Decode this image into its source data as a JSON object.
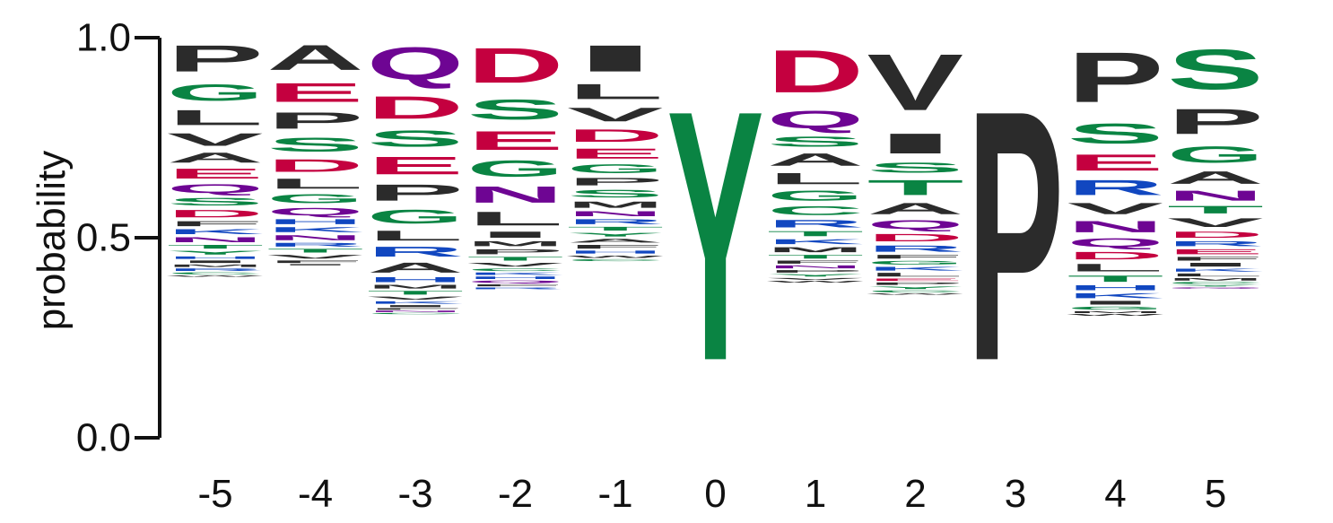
{
  "chart_data": {
    "type": "sequence-logo",
    "ylabel": "probability",
    "ylim": [
      0,
      1
    ],
    "yticks": [
      "0.0",
      "0.5",
      "1.0"
    ],
    "colors": {
      "hydrophobic": "#2b2b2b",
      "polar": "#0a8443",
      "acidic": "#c4003f",
      "basic": "#1147c0",
      "amide": "#6e0593"
    },
    "residue_classes": {
      "A": "hydrophobic",
      "V": "hydrophobic",
      "L": "hydrophobic",
      "I": "hydrophobic",
      "P": "hydrophobic",
      "F": "hydrophobic",
      "M": "hydrophobic",
      "W": "hydrophobic",
      "G": "polar",
      "S": "polar",
      "T": "polar",
      "Y": "polar",
      "C": "polar",
      "D": "acidic",
      "E": "acidic",
      "K": "basic",
      "R": "basic",
      "H": "basic",
      "N": "amide",
      "Q": "amide"
    },
    "positions": [
      {
        "label": "-5",
        "letters": [
          [
            "P",
            0.105
          ],
          [
            "G",
            0.065
          ],
          [
            "L",
            0.06
          ],
          [
            "V",
            0.05
          ],
          [
            "A",
            0.04
          ],
          [
            "E",
            0.04
          ],
          [
            "Q",
            0.035
          ],
          [
            "S",
            0.03
          ],
          [
            "D",
            0.03
          ],
          [
            "F",
            0.02
          ],
          [
            "K",
            0.02
          ],
          [
            "N",
            0.02
          ],
          [
            "T",
            0.015
          ],
          [
            "Y",
            0.015
          ],
          [
            "H",
            0.01
          ],
          [
            "I",
            0.01
          ],
          [
            "M",
            0.01
          ],
          [
            "R",
            0.01
          ],
          [
            "C",
            0.008
          ],
          [
            "W",
            0.005
          ]
        ]
      },
      {
        "label": "-4",
        "letters": [
          [
            "A",
            0.1
          ],
          [
            "E",
            0.075
          ],
          [
            "P",
            0.065
          ],
          [
            "S",
            0.055
          ],
          [
            "D",
            0.05
          ],
          [
            "L",
            0.04
          ],
          [
            "G",
            0.035
          ],
          [
            "Q",
            0.03
          ],
          [
            "H",
            0.02
          ],
          [
            "K",
            0.02
          ],
          [
            "N",
            0.02
          ],
          [
            "R",
            0.015
          ],
          [
            "T",
            0.015
          ],
          [
            "V",
            0.015
          ],
          [
            "F",
            0.01
          ],
          [
            "I",
            0.005
          ]
        ]
      },
      {
        "label": "-3",
        "letters": [
          [
            "Q",
            0.13
          ],
          [
            "D",
            0.09
          ],
          [
            "S",
            0.065
          ],
          [
            "E",
            0.07
          ],
          [
            "P",
            0.065
          ],
          [
            "G",
            0.055
          ],
          [
            "L",
            0.04
          ],
          [
            "R",
            0.04
          ],
          [
            "A",
            0.04
          ],
          [
            "H",
            0.02
          ],
          [
            "M",
            0.015
          ],
          [
            "T",
            0.015
          ],
          [
            "V",
            0.012
          ],
          [
            "K",
            0.01
          ],
          [
            "I",
            0.008
          ],
          [
            "F",
            0.006
          ],
          [
            "N",
            0.006
          ],
          [
            "C",
            0.005
          ]
        ]
      },
      {
        "label": "-2",
        "letters": [
          [
            "D",
            0.14
          ],
          [
            "S",
            0.08
          ],
          [
            "E",
            0.075
          ],
          [
            "G",
            0.065
          ],
          [
            "N",
            0.065
          ],
          [
            "L",
            0.055
          ],
          [
            "I",
            0.025
          ],
          [
            "M",
            0.02
          ],
          [
            "P",
            0.02
          ],
          [
            "T",
            0.015
          ],
          [
            "V",
            0.015
          ],
          [
            "C",
            0.01
          ],
          [
            "K",
            0.01
          ],
          [
            "H",
            0.01
          ],
          [
            "Q",
            0.01
          ],
          [
            "F",
            0.008
          ],
          [
            "R",
            0.007
          ]
        ]
      },
      {
        "label": "-1",
        "letters": [
          [
            "I",
            0.105
          ],
          [
            "L",
            0.06
          ],
          [
            "V",
            0.055
          ],
          [
            "D",
            0.05
          ],
          [
            "E",
            0.04
          ],
          [
            "G",
            0.035
          ],
          [
            "P",
            0.03
          ],
          [
            "S",
            0.03
          ],
          [
            "M",
            0.025
          ],
          [
            "N",
            0.02
          ],
          [
            "R",
            0.02
          ],
          [
            "T",
            0.015
          ],
          [
            "Y",
            0.015
          ],
          [
            "A",
            0.015
          ],
          [
            "F",
            0.015
          ],
          [
            "H",
            0.012
          ],
          [
            "W",
            0.01
          ],
          [
            "C",
            0.008
          ]
        ]
      },
      {
        "label": "0",
        "letters": [
          [
            "Y",
            1.0
          ]
        ]
      },
      {
        "label": "1",
        "letters": [
          [
            "D",
            0.17
          ],
          [
            "Q",
            0.07
          ],
          [
            "S",
            0.04
          ],
          [
            "A",
            0.05
          ],
          [
            "L",
            0.045
          ],
          [
            "G",
            0.04
          ],
          [
            "C",
            0.035
          ],
          [
            "R",
            0.03
          ],
          [
            "T",
            0.02
          ],
          [
            "K",
            0.02
          ],
          [
            "M",
            0.02
          ],
          [
            "T",
            0.015
          ],
          [
            "F",
            0.012
          ],
          [
            "N",
            0.012
          ],
          [
            "P",
            0.01
          ],
          [
            "Y",
            0.01
          ],
          [
            "V",
            0.008
          ],
          [
            "W",
            0.006
          ]
        ]
      },
      {
        "label": "2",
        "letters": [
          [
            "V",
            0.225
          ],
          [
            "I",
            0.08
          ],
          [
            "S",
            0.04
          ],
          [
            "T",
            0.06
          ],
          [
            "A",
            0.045
          ],
          [
            "Q",
            0.035
          ],
          [
            "D",
            0.03
          ],
          [
            "R",
            0.025
          ],
          [
            "F",
            0.015
          ],
          [
            "G",
            0.015
          ],
          [
            "K",
            0.015
          ],
          [
            "L",
            0.015
          ],
          [
            "E",
            0.01
          ],
          [
            "P",
            0.01
          ],
          [
            "Y",
            0.01
          ],
          [
            "C",
            0.008
          ],
          [
            "W",
            0.005
          ]
        ]
      },
      {
        "label": "3",
        "letters": [
          [
            "P",
            1.0
          ]
        ]
      },
      {
        "label": "4",
        "letters": [
          [
            "P",
            0.2
          ],
          [
            "S",
            0.08
          ],
          [
            "E",
            0.065
          ],
          [
            "R",
            0.06
          ],
          [
            "V",
            0.045
          ],
          [
            "N",
            0.045
          ],
          [
            "Q",
            0.035
          ],
          [
            "D",
            0.03
          ],
          [
            "L",
            0.03
          ],
          [
            "T",
            0.025
          ],
          [
            "H",
            0.02
          ],
          [
            "K",
            0.02
          ],
          [
            "I",
            0.015
          ],
          [
            "G",
            0.012
          ],
          [
            "M",
            0.008
          ],
          [
            "W",
            0.006
          ]
        ]
      },
      {
        "label": "5",
        "letters": [
          [
            "S",
            0.16
          ],
          [
            "P",
            0.1
          ],
          [
            "G",
            0.065
          ],
          [
            "A",
            0.05
          ],
          [
            "N",
            0.04
          ],
          [
            "T",
            0.03
          ],
          [
            "V",
            0.035
          ],
          [
            "D",
            0.025
          ],
          [
            "R",
            0.02
          ],
          [
            "E",
            0.02
          ],
          [
            "F",
            0.015
          ],
          [
            "I",
            0.015
          ],
          [
            "K",
            0.012
          ],
          [
            "L",
            0.012
          ],
          [
            "M",
            0.01
          ],
          [
            "C",
            0.008
          ],
          [
            "Y",
            0.006
          ],
          [
            "Q",
            0.005
          ]
        ]
      }
    ]
  }
}
